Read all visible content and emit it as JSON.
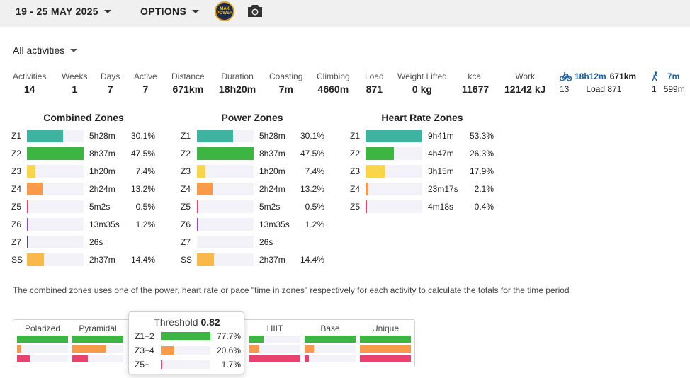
{
  "topbar": {
    "date_range": "19 - 25 MAY 2025",
    "options_label": "OPTIONS",
    "logo_text": "MAX POWER",
    "icons": [
      "chevron-down-icon",
      "camera-icon"
    ]
  },
  "filter": {
    "selected": "All activities"
  },
  "stats": [
    {
      "label": "Activities",
      "value": "14"
    },
    {
      "label": "Weeks",
      "value": "1"
    },
    {
      "label": "Days",
      "value": "7"
    },
    {
      "label": "Active",
      "value": "7"
    },
    {
      "label": "Distance",
      "value": "671km"
    },
    {
      "label": "Duration",
      "value": "18h20m"
    },
    {
      "label": "Coasting",
      "value": "7m"
    },
    {
      "label": "Climbing",
      "value": "4660m"
    },
    {
      "label": "Load",
      "value": "871"
    },
    {
      "label": "Weight Lifted",
      "value": "0 kg"
    },
    {
      "label": "kcal",
      "value": "11677"
    },
    {
      "label": "Work",
      "value": "12142 kJ"
    }
  ],
  "sports": {
    "ride": {
      "icon": "bike-icon",
      "time": "18h12m",
      "distance": "671km",
      "count": "13",
      "load": "Load 871"
    },
    "walk": {
      "icon": "walk-icon",
      "time": "7m",
      "count": "1",
      "distance": "599m"
    }
  },
  "zones": {
    "combined": {
      "title": "Combined Zones",
      "rows": [
        {
          "zone": "Z1",
          "time": "5h28m",
          "pct": "30.1%",
          "fraction": 0.634
        },
        {
          "zone": "Z2",
          "time": "8h37m",
          "pct": "47.5%",
          "fraction": 1.0
        },
        {
          "zone": "Z3",
          "time": "1h20m",
          "pct": "7.4%",
          "fraction": 0.156
        },
        {
          "zone": "Z4",
          "time": "2h24m",
          "pct": "13.2%",
          "fraction": 0.278
        },
        {
          "zone": "Z5",
          "time": "5m2s",
          "pct": "0.5%",
          "fraction": 0.012
        },
        {
          "zone": "Z6",
          "time": "13m35s",
          "pct": "1.2%",
          "fraction": 0.03
        },
        {
          "zone": "Z7",
          "time": "26s",
          "pct": "",
          "fraction": 0.005
        },
        {
          "zone": "SS",
          "time": "2h37m",
          "pct": "14.4%",
          "fraction": 0.303
        }
      ]
    },
    "power": {
      "title": "Power Zones",
      "rows": [
        {
          "zone": "Z1",
          "time": "5h28m",
          "pct": "30.1%",
          "fraction": 0.634
        },
        {
          "zone": "Z2",
          "time": "8h37m",
          "pct": "47.5%",
          "fraction": 1.0
        },
        {
          "zone": "Z3",
          "time": "1h20m",
          "pct": "7.4%",
          "fraction": 0.156
        },
        {
          "zone": "Z4",
          "time": "2h24m",
          "pct": "13.2%",
          "fraction": 0.278
        },
        {
          "zone": "Z5",
          "time": "5m2s",
          "pct": "0.5%",
          "fraction": 0.012
        },
        {
          "zone": "Z6",
          "time": "13m35s",
          "pct": "1.2%",
          "fraction": 0.03
        },
        {
          "zone": "Z7",
          "time": "26s",
          "pct": "",
          "fraction": 0.0
        },
        {
          "zone": "SS",
          "time": "2h37m",
          "pct": "14.4%",
          "fraction": 0.303
        }
      ]
    },
    "hr": {
      "title": "Heart Rate Zones",
      "rows": [
        {
          "zone": "Z1",
          "time": "9h41m",
          "pct": "53.3%",
          "fraction": 1.0
        },
        {
          "zone": "Z2",
          "time": "4h47m",
          "pct": "26.3%",
          "fraction": 0.494
        },
        {
          "zone": "Z3",
          "time": "3h15m",
          "pct": "17.9%",
          "fraction": 0.336
        },
        {
          "zone": "Z4",
          "time": "23m17s",
          "pct": "2.1%",
          "fraction": 0.04
        },
        {
          "zone": "Z5",
          "time": "4m18s",
          "pct": "0.4%",
          "fraction": 0.01
        }
      ]
    },
    "colors": {
      "Z1": "#3eb39f",
      "Z2": "#3db543",
      "Z3": "#f9d54a",
      "Z4": "#f99a4a",
      "Z5": "#e8436e",
      "Z6": "#8a4fcf",
      "Z7": "#555566",
      "SS": "#f9b94a"
    }
  },
  "note": "The combined zones uses one of the power, heart rate or pace \"time in zones\" respectively for each activity to calculate the totals for the time period",
  "distribution": {
    "columns": [
      {
        "name": "Polarized",
        "fractions": [
          1.0,
          0.08,
          0.25
        ]
      },
      {
        "name": "Pyramidal",
        "fractions": [
          1.0,
          0.65,
          0.3
        ]
      },
      {
        "name": "HIIT",
        "fractions": [
          0.28,
          0.2,
          1.0
        ]
      },
      {
        "name": "Base",
        "fractions": [
          1.0,
          0.18,
          0.08
        ]
      },
      {
        "name": "Unique",
        "fractions": [
          1.0,
          1.0,
          1.0
        ]
      }
    ],
    "bar_colors": [
      "#3db543",
      "#f99a4a",
      "#e8436e"
    ]
  },
  "tooltip": {
    "title": "Threshold",
    "score": "0.82",
    "rows": [
      {
        "label": "Z1+2",
        "pct": "77.7%",
        "fraction": 1.0
      },
      {
        "label": "Z3+4",
        "pct": "20.6%",
        "fraction": 0.26
      },
      {
        "label": "Z5+",
        "pct": "1.7%",
        "fraction": 0.02
      }
    ]
  }
}
